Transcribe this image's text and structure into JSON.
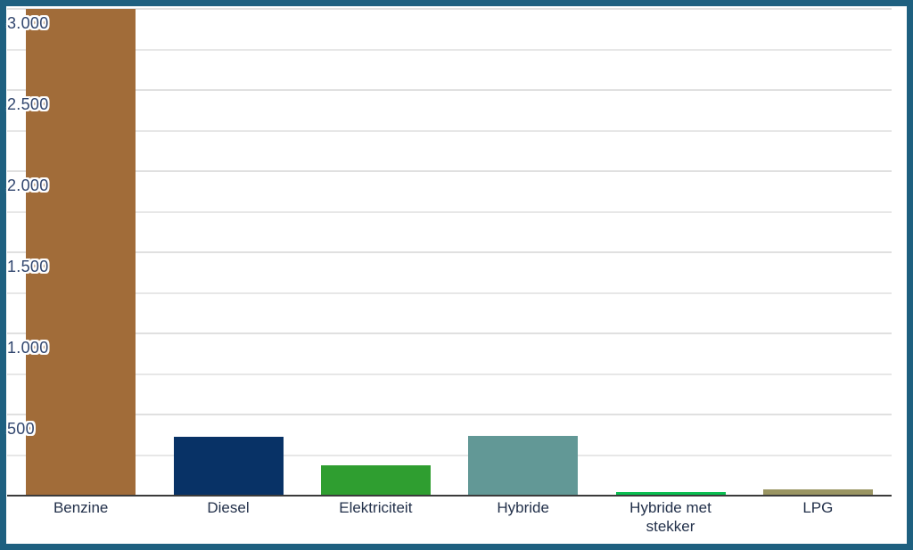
{
  "frame": {
    "border_color": "#1E6080",
    "background": "#ffffff"
  },
  "chart_data": {
    "type": "bar",
    "title": "",
    "xlabel": "",
    "ylabel": "",
    "categories": [
      "Benzine",
      "Diesel",
      "Elektriciteit",
      "Hybride",
      "Hybride met stekker",
      "LPG"
    ],
    "values": [
      3000,
      365,
      185,
      370,
      20,
      40
    ],
    "bar_colors": [
      "#A16C39",
      "#083266",
      "#2F9E30",
      "#629896",
      "#0ABF51",
      "#9A9562"
    ],
    "ylim": [
      0,
      3000
    ],
    "grid": true,
    "gridline_step": 250,
    "ytick_step": 500,
    "yticks": [
      {
        "value": 500,
        "label": "500"
      },
      {
        "value": 1000,
        "label": "1.000"
      },
      {
        "value": 1500,
        "label": "1.500"
      },
      {
        "value": 2000,
        "label": "2.000"
      },
      {
        "value": 2500,
        "label": "2.500"
      },
      {
        "value": 3000,
        "label": "3.000"
      }
    ],
    "legend_position": "none"
  },
  "colors": {
    "gridline": "#e7e7e7",
    "axis_line": "#3b3b3b",
    "tick_label": "#31466e",
    "category_label": "#22304a",
    "label_halo": "#ffffff"
  }
}
